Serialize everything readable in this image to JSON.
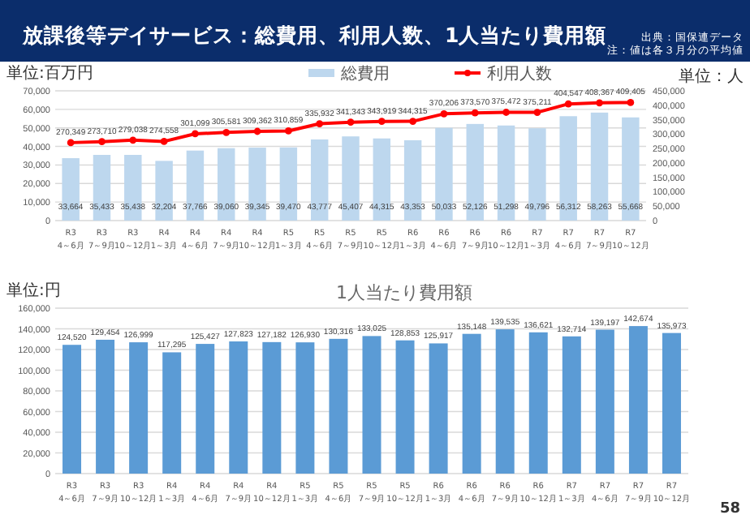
{
  "chart_data": [
    {
      "type": "bar",
      "title": "放課後等デイサービス：総費用、利用人数、1人当たり費用額",
      "annotations": [
        "出典：国保連データ",
        "注：値は各３月分の平均値"
      ],
      "ylabel": "単位:百万円",
      "y2label": "単位：人",
      "categories": [
        "R3\n4～6月",
        "R3\n7～9月",
        "R3\n10～12月",
        "R4\n1～3月",
        "R4\n4～6月",
        "R4\n7～9月",
        "R4\n10～12月",
        "R5\n1～3月",
        "R5\n4～6月",
        "R5\n7～9月",
        "R5\n10～12月",
        "R6\n1～3月",
        "R6\n4～6月",
        "R6\n7～9月",
        "R6\n10～12月",
        "R7\n1～3月",
        "R7\n4～6月",
        "R7\n7～9月",
        "R7\n10～12月"
      ],
      "series": [
        {
          "name": "総費用",
          "color": "#bdd7ee",
          "values": [
            33664,
            35433,
            35438,
            32204,
            37766,
            39060,
            39345,
            39470,
            43777,
            45407,
            44315,
            43353,
            50033,
            52126,
            51298,
            49796,
            56312,
            58263,
            55668
          ],
          "value_labels": [
            "33,664",
            "35,433",
            "35,438",
            "32,204",
            "37,766",
            "39,060",
            "39,345",
            "39,470",
            "43,777",
            "45,407",
            "44,315",
            "43,353",
            "50,033",
            "52,126",
            "51,298",
            "49,796",
            "56,312",
            "58,263",
            "55,668"
          ]
        },
        {
          "name": "利用人数",
          "type": "line",
          "axis": "y2",
          "color": "#ff0000",
          "marker": "circle",
          "values": [
            270349,
            273710,
            279038,
            274558,
            301099,
            305581,
            309362,
            310859,
            335932,
            341343,
            343919,
            344315,
            370206,
            373570,
            375472,
            375211,
            404547,
            408367,
            409405
          ],
          "value_labels": [
            "270,349",
            "273,710",
            "279,038",
            "274,558",
            "301,099",
            "305,581",
            "309,362",
            "310,859",
            "335,932",
            "341,343",
            "343,919",
            "344,315",
            "370,206",
            "373,570",
            "375,472",
            "375,211",
            "404,547",
            "408,367",
            "409,405"
          ]
        }
      ],
      "ylim": [
        0,
        70000
      ],
      "yticks": [
        0,
        {
          "value": 10000,
          "label": "10,000"
        },
        {
          "value": 20000,
          "label": "20,000"
        },
        {
          "value": 30000,
          "label": "30,000"
        },
        {
          "value": 40000,
          "label": "40,000"
        },
        {
          "value": 50000,
          "label": "50,000"
        },
        {
          "value": 60000,
          "label": "60,000"
        },
        {
          "value": 70000,
          "label": "70,000"
        }
      ],
      "y2lim": [
        0,
        450000
      ],
      "y2ticks": [
        0,
        {
          "value": 50000,
          "label": "50,000"
        },
        {
          "value": 100000,
          "label": "100,000"
        },
        {
          "value": 150000,
          "label": "150,000"
        },
        {
          "value": 200000,
          "label": "200,000"
        },
        {
          "value": 250000,
          "label": "250,000"
        },
        {
          "value": 300000,
          "label": "300,000"
        },
        {
          "value": 350000,
          "label": "350,000"
        },
        {
          "value": 400000,
          "label": "400,000"
        },
        {
          "value": 450000,
          "label": "450,000"
        }
      ],
      "grid": "y",
      "legend": "top"
    },
    {
      "type": "bar",
      "title": "1人当たり費用額",
      "ylabel": "単位:円",
      "annotations": [
        "58"
      ],
      "categories": [
        "R3\n4～6月",
        "R3\n7～9月",
        "R3\n10～12月",
        "R4\n1～3月",
        "R4\n4～6月",
        "R4\n7～9月",
        "R4\n10～12月",
        "R5\n1～3月",
        "R5\n4～6月",
        "R5\n7～9月",
        "R5\n10～12月",
        "R6\n1～3月",
        "R6\n4～6月",
        "R6\n7～9月",
        "R6\n10～12月",
        "R7\n1～3月",
        "R7\n4～6月",
        "R7\n7～9月",
        "R7\n10～12月"
      ],
      "color": "#5b9bd5",
      "values": [
        124520,
        129454,
        126999,
        117295,
        125427,
        127823,
        127182,
        126930,
        130316,
        133025,
        128853,
        125917,
        135148,
        139535,
        136621,
        132714,
        139197,
        142674,
        135973
      ],
      "value_labels": [
        "124,520",
        "129,454",
        "126,999",
        "117,295",
        "125,427",
        "127,823",
        "127,182",
        "126,930",
        "130,316",
        "133,025",
        "128,853",
        "125,917",
        "135,148",
        "139,535",
        "136,621",
        "132,714",
        "139,197",
        "142,674",
        "135,973"
      ],
      "ylim": [
        0,
        160000
      ],
      "yticks": [
        0,
        {
          "value": 20000,
          "label": "20,000"
        },
        {
          "value": 40000,
          "label": "40,000"
        },
        {
          "value": 60000,
          "label": "60,000"
        },
        {
          "value": 80000,
          "label": "80,000"
        },
        {
          "value": 100000,
          "label": "100,000"
        },
        {
          "value": 120000,
          "label": "120,000"
        },
        {
          "value": 140000,
          "label": "140,000"
        },
        {
          "value": 160000,
          "label": "160,000"
        }
      ],
      "grid": "y"
    }
  ]
}
